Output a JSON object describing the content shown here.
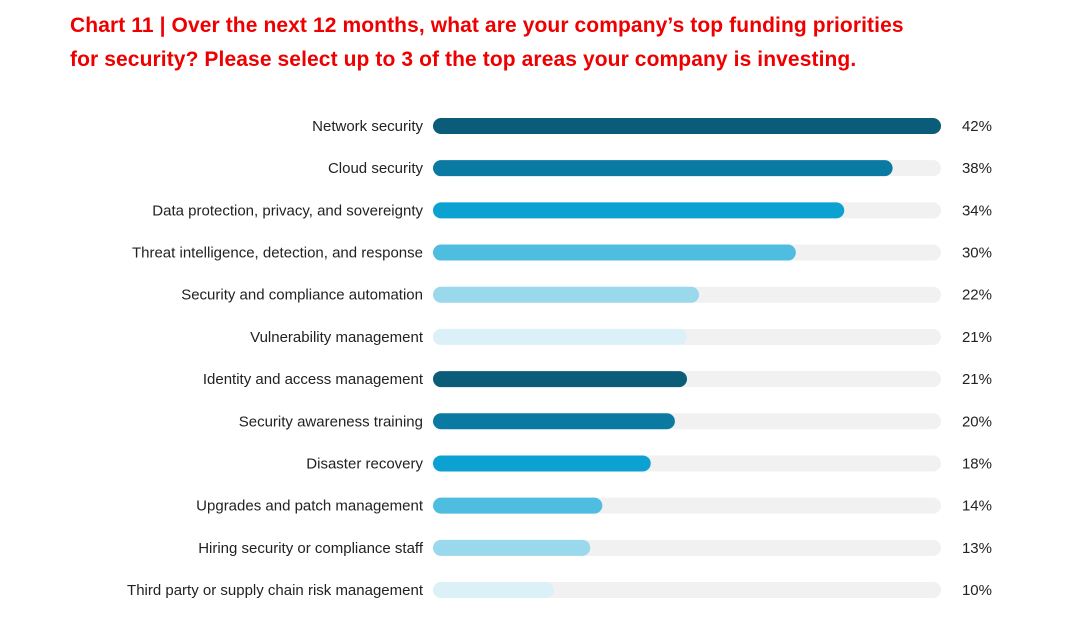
{
  "chart_data": {
    "type": "bar",
    "orientation": "horizontal",
    "title_line1": "Chart 11  |  Over the next 12 months, what are your company’s top funding priorities",
    "title_line2": "for security? Please select up to 3 of the top areas your company is investing.",
    "categories": [
      "Network security",
      "Cloud security",
      "Data protection, privacy, and sovereignty",
      "Threat intelligence, detection, and response",
      "Security and compliance automation",
      "Vulnerability management",
      "Identity and access management",
      "Security awareness training",
      "Disaster recovery",
      "Upgrades and patch management",
      "Hiring security or compliance staff",
      "Third party or supply chain risk management"
    ],
    "values": [
      42,
      38,
      34,
      30,
      22,
      21,
      21,
      20,
      18,
      14,
      13,
      10
    ],
    "value_labels": [
      "42%",
      "38%",
      "34%",
      "30%",
      "22%",
      "21%",
      "21%",
      "20%",
      "18%",
      "14%",
      "13%",
      "10%"
    ],
    "xlim": [
      0,
      42
    ],
    "unit": "%",
    "colors": [
      "#0a5c78",
      "#0b7aa3",
      "#0ba1d0",
      "#4fbde0",
      "#9ad8ec",
      "#dcf0f8",
      "#0a5c78",
      "#0b7aa3",
      "#0ba1d0",
      "#4fbde0",
      "#9ad8ec",
      "#dcf0f8"
    ],
    "track_color": "#f1f1f1",
    "legend": "none",
    "grid": false
  }
}
